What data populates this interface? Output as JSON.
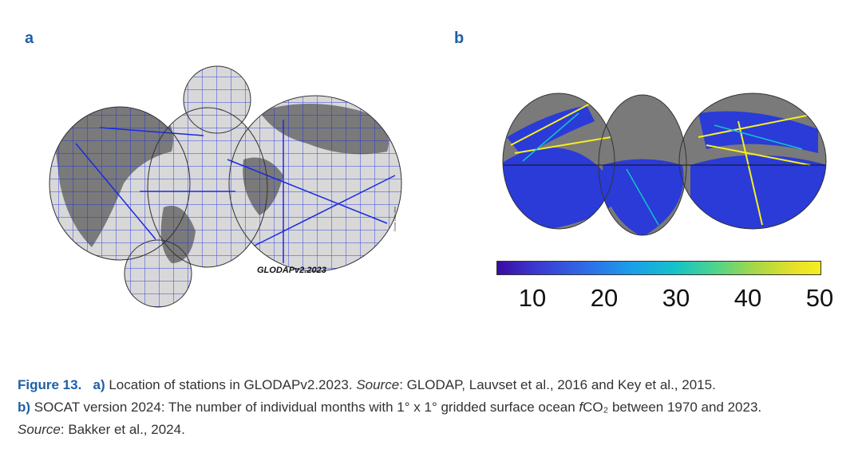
{
  "panels": {
    "a": {
      "letter": "a",
      "product_label": "GLODAPv2.2023",
      "side_note": "Ocean Data View"
    },
    "b": {
      "letter": "b",
      "colorbar": {
        "ticks": [
          "10",
          "20",
          "30",
          "40",
          "50"
        ],
        "range": [
          5,
          50
        ],
        "colors": [
          "#3a0ca3",
          "#2f6ee8",
          "#14c2c9",
          "#a8d845",
          "#f6ee20"
        ]
      }
    }
  },
  "caption": {
    "figure_label": "Figure 13.",
    "a_label": "a)",
    "a_text": "Location of stations in GLODAPv2.2023. ",
    "source_label": "Source",
    "a_source": ": GLODAP, Lauvset et al., 2016 and Key et al., 2015.",
    "b_label": "b)",
    "b_text_1": "SOCAT version 2024: The number of individual months with 1° x 1° gridded surface ocean ",
    "b_f": "f",
    "b_text_2": "CO₂ between 1970 and 2023.",
    "b_source": ": Bakker et al., 2024."
  },
  "colors": {
    "accent": "#1f5fa6",
    "land_gray": "#7a7a7a",
    "ocean_gray": "#d8d8d8",
    "track_blue": "#1a2be0"
  }
}
